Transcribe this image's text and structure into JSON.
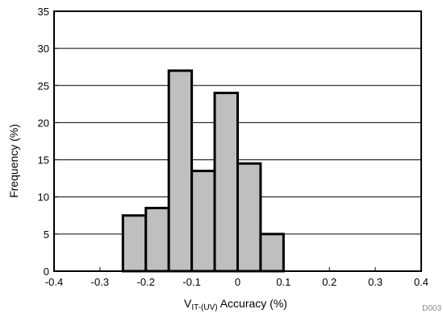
{
  "chart_data": {
    "type": "bar",
    "bin_edges": [
      -0.25,
      -0.2,
      -0.15,
      -0.1,
      -0.05,
      0,
      0.05,
      0.1
    ],
    "values": [
      7.5,
      8.5,
      27,
      13.5,
      24,
      14.5,
      5
    ],
    "xlim": [
      -0.4,
      0.4
    ],
    "ylim": [
      0,
      35
    ],
    "xticks": [
      "-0.4",
      "-0.3",
      "-0.2",
      "-0.1",
      "0",
      "0.1",
      "0.2",
      "0.3",
      "0.4"
    ],
    "yticks": [
      "0",
      "5",
      "10",
      "15",
      "20",
      "25",
      "30",
      "35"
    ],
    "ylabel": "Frequency (%)",
    "xlabel_main": "V",
    "xlabel_sub": "IT-(UV)",
    "xlabel_rest": " Accuracy (%)",
    "grid": "horizontal",
    "bar_color": "#bfbfbf",
    "code": "D003"
  }
}
